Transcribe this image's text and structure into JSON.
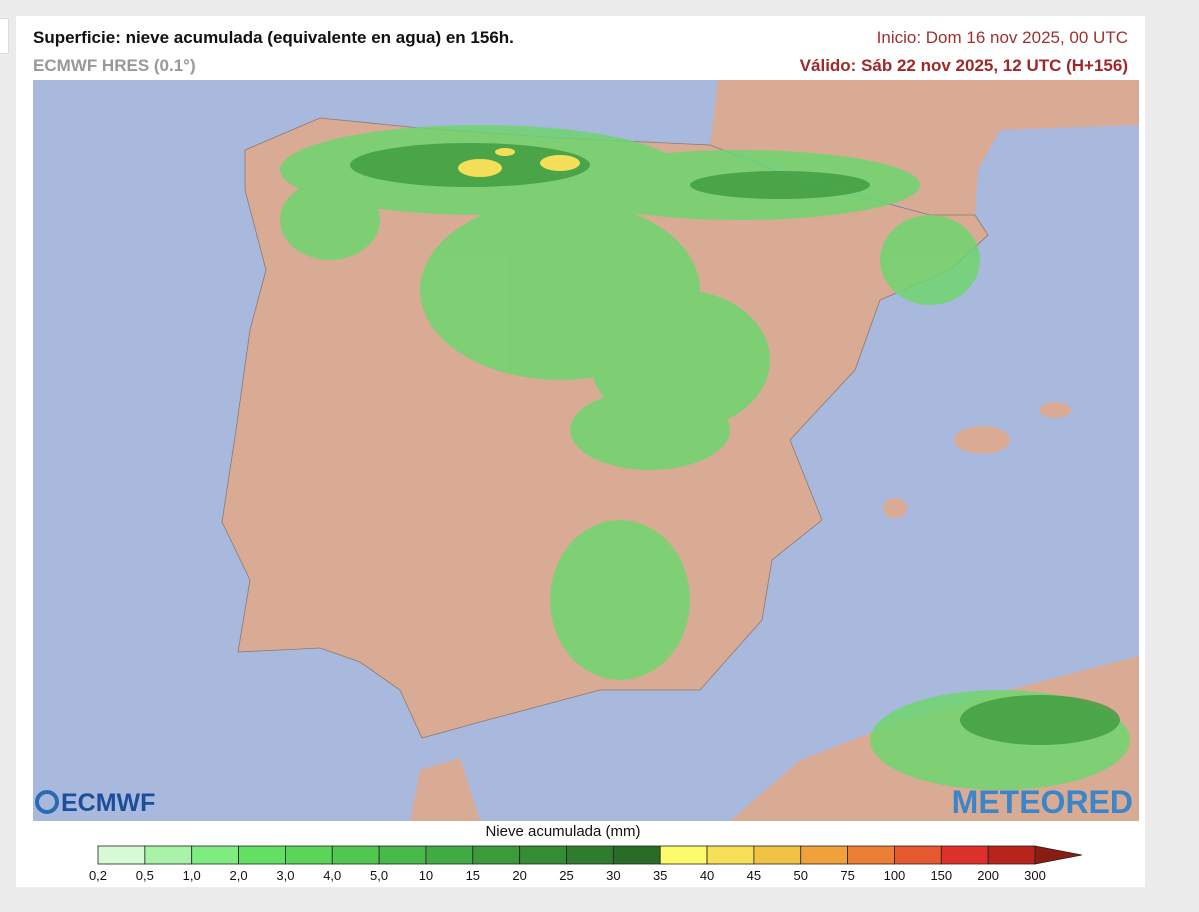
{
  "header": {
    "title": "Superficie: nieve acumulada (equivalente en agua) en 156h.",
    "model": "ECMWF HRES (0.1°)",
    "start": "Inicio: Dom 16 nov 2025, 00 UTC",
    "valid": "Válido: Sáb 22 nov 2025, 12 UTC (H+156)"
  },
  "logos": {
    "left": "ECMWF",
    "right": "METEORED"
  },
  "legend": {
    "title": "Nieve acumulada (mm)",
    "labels": [
      "0,2",
      "0,5",
      "1,0",
      "2,0",
      "3,0",
      "4,0",
      "5,0",
      "10",
      "15",
      "20",
      "25",
      "30",
      "35",
      "40",
      "45",
      "50",
      "75",
      "100",
      "150",
      "200",
      "300"
    ],
    "colors": [
      "#d6fbd6",
      "#a8f3a8",
      "#7fec7f",
      "#63e063",
      "#5ad55a",
      "#51c751",
      "#49b949",
      "#42aa42",
      "#3b9b3b",
      "#348c34",
      "#2e7d2e",
      "#286c28",
      "#fdfb6a",
      "#f7df58",
      "#f2c244",
      "#efa23a",
      "#eb8034",
      "#e6582e",
      "#dd302a",
      "#b8231c",
      "#8a1d12"
    ]
  }
}
